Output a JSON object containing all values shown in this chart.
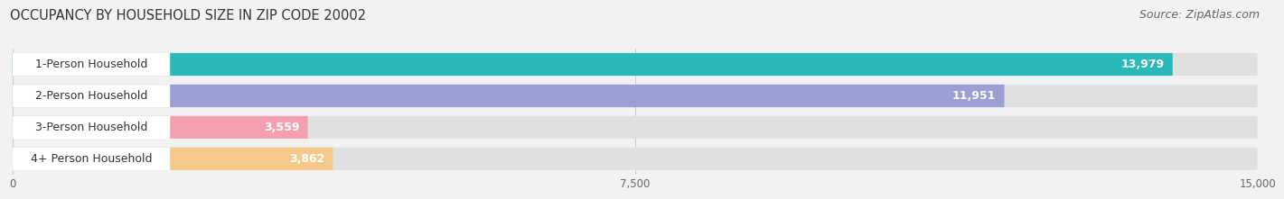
{
  "title": "OCCUPANCY BY HOUSEHOLD SIZE IN ZIP CODE 20002",
  "source": "Source: ZipAtlas.com",
  "categories": [
    "1-Person Household",
    "2-Person Household",
    "3-Person Household",
    "4+ Person Household"
  ],
  "values": [
    13979,
    11951,
    3559,
    3862
  ],
  "bar_colors": [
    "#2ab8b8",
    "#9b9fd4",
    "#f4a0b0",
    "#f5c98a"
  ],
  "xlim": [
    0,
    15000
  ],
  "xticks": [
    0,
    7500,
    15000
  ],
  "xtick_labels": [
    "0",
    "7,500",
    "15,000"
  ],
  "title_fontsize": 10.5,
  "source_fontsize": 9,
  "label_fontsize": 9,
  "value_fontsize": 9,
  "background_color": "#f2f2f2",
  "bar_bg_color": "#e0e0e0",
  "label_box_color": "#ffffff"
}
